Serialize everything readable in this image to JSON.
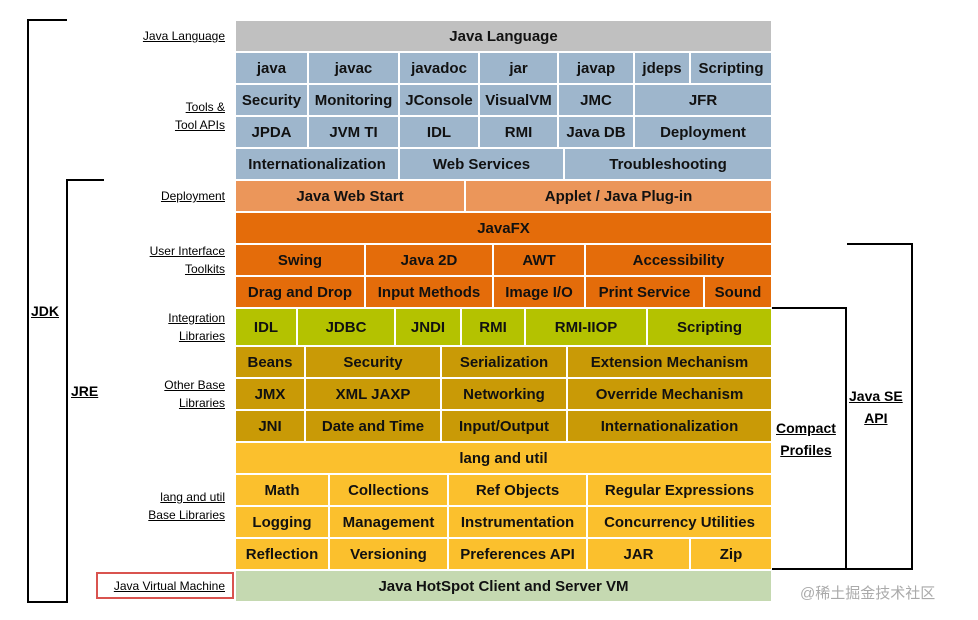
{
  "colors": {
    "language": "#c0c0c0",
    "tools": "#9eb6cc",
    "deployment": "#eb965a",
    "ui": "#e46c0a",
    "integration": "#b4c200",
    "other_base": "#c99a06",
    "lang_util": "#fbc02d",
    "jvm": "#c5d9b1"
  },
  "labels": {
    "java_language": "Java Language",
    "tools_1": "Tools &",
    "tools_2": "Tool APIs",
    "deployment": "Deployment",
    "ui_1": "User Interface",
    "ui_2": "Toolkits",
    "integration_1": "Integration",
    "integration_2": "Libraries",
    "other_1": "Other Base",
    "other_2": "Libraries",
    "langutil_1": "lang and util",
    "langutil_2": "Base Libraries",
    "jvm": "Java Virtual Machine"
  },
  "brackets": {
    "jdk": "JDK",
    "jre": "JRE",
    "compact_1": "Compact",
    "compact_2": "Profiles",
    "javase_1": "Java SE",
    "javase_2": "API"
  },
  "rows": [
    {
      "group": "language",
      "cells": [
        {
          "text": "Java Language",
          "w": 537
        }
      ]
    },
    {
      "group": "tools",
      "cells": [
        {
          "text": "java",
          "w": 73
        },
        {
          "text": "javac",
          "w": 91
        },
        {
          "text": "javadoc",
          "w": 80
        },
        {
          "text": "jar",
          "w": 79
        },
        {
          "text": "javap",
          "w": 76
        },
        {
          "text": "jdeps",
          "w": 56
        },
        {
          "text": "Scripting",
          "w": 82
        }
      ]
    },
    {
      "group": "tools",
      "cells": [
        {
          "text": "Security",
          "w": 73
        },
        {
          "text": "Monitoring",
          "w": 91
        },
        {
          "text": "JConsole",
          "w": 80
        },
        {
          "text": "VisualVM",
          "w": 79
        },
        {
          "text": "JMC",
          "w": 76
        },
        {
          "text": "JFR",
          "w": 138
        }
      ]
    },
    {
      "group": "tools",
      "cells": [
        {
          "text": "JPDA",
          "w": 73
        },
        {
          "text": "JVM TI",
          "w": 91
        },
        {
          "text": "IDL",
          "w": 80
        },
        {
          "text": "RMI",
          "w": 79
        },
        {
          "text": "Java DB",
          "w": 76
        },
        {
          "text": "Deployment",
          "w": 138
        }
      ]
    },
    {
      "group": "tools",
      "cells": [
        {
          "text": "Internationalization",
          "w": 164
        },
        {
          "text": "Web Services",
          "w": 165
        },
        {
          "text": "Troubleshooting",
          "w": 208
        }
      ]
    },
    {
      "group": "deployment",
      "cells": [
        {
          "text": "Java Web Start",
          "w": 230
        },
        {
          "text": "Applet / Java Plug-in",
          "w": 307
        }
      ]
    },
    {
      "group": "ui",
      "cells": [
        {
          "text": "JavaFX",
          "w": 537
        }
      ]
    },
    {
      "group": "ui",
      "cells": [
        {
          "text": "Swing",
          "w": 130
        },
        {
          "text": "Java 2D",
          "w": 128
        },
        {
          "text": "AWT",
          "w": 92
        },
        {
          "text": "Accessibility",
          "w": 187
        }
      ]
    },
    {
      "group": "ui",
      "cells": [
        {
          "text": "Drag and Drop",
          "w": 130
        },
        {
          "text": "Input Methods",
          "w": 128
        },
        {
          "text": "Image I/O",
          "w": 92
        },
        {
          "text": "Print Service",
          "w": 119
        },
        {
          "text": "Sound",
          "w": 68
        }
      ]
    },
    {
      "group": "integration",
      "cells": [
        {
          "text": "IDL",
          "w": 62
        },
        {
          "text": "JDBC",
          "w": 98
        },
        {
          "text": "JNDI",
          "w": 66
        },
        {
          "text": "RMI",
          "w": 64
        },
        {
          "text": "RMI-IIOP",
          "w": 122
        },
        {
          "text": "Scripting",
          "w": 125
        }
      ]
    },
    {
      "group": "other_base",
      "cells": [
        {
          "text": "Beans",
          "w": 70
        },
        {
          "text": "Security",
          "w": 136
        },
        {
          "text": "Serialization",
          "w": 126
        },
        {
          "text": "Extension Mechanism",
          "w": 205
        }
      ]
    },
    {
      "group": "other_base",
      "cells": [
        {
          "text": "JMX",
          "w": 70
        },
        {
          "text": "XML JAXP",
          "w": 136
        },
        {
          "text": "Networking",
          "w": 126
        },
        {
          "text": "Override Mechanism",
          "w": 205
        }
      ]
    },
    {
      "group": "other_base",
      "cells": [
        {
          "text": "JNI",
          "w": 70
        },
        {
          "text": "Date and Time",
          "w": 136
        },
        {
          "text": "Input/Output",
          "w": 126
        },
        {
          "text": "Internationalization",
          "w": 205
        }
      ]
    },
    {
      "group": "lang_util",
      "cells": [
        {
          "text": "lang and util",
          "w": 537
        }
      ]
    },
    {
      "group": "lang_util",
      "cells": [
        {
          "text": "Math",
          "w": 94
        },
        {
          "text": "Collections",
          "w": 119
        },
        {
          "text": "Ref Objects",
          "w": 139
        },
        {
          "text": "Regular Expressions",
          "w": 185
        }
      ]
    },
    {
      "group": "lang_util",
      "cells": [
        {
          "text": "Logging",
          "w": 94
        },
        {
          "text": "Management",
          "w": 119
        },
        {
          "text": "Instrumentation",
          "w": 139
        },
        {
          "text": "Concurrency Utilities",
          "w": 185
        }
      ]
    },
    {
      "group": "lang_util",
      "cells": [
        {
          "text": "Reflection",
          "w": 94
        },
        {
          "text": "Versioning",
          "w": 119
        },
        {
          "text": "Preferences API",
          "w": 139
        },
        {
          "text": "JAR",
          "w": 103
        },
        {
          "text": "Zip",
          "w": 82
        }
      ]
    },
    {
      "group": "jvm",
      "cells": [
        {
          "text": "Java HotSpot Client and Server VM",
          "w": 537
        }
      ]
    }
  ],
  "watermark": "@稀土掘金技术社区"
}
